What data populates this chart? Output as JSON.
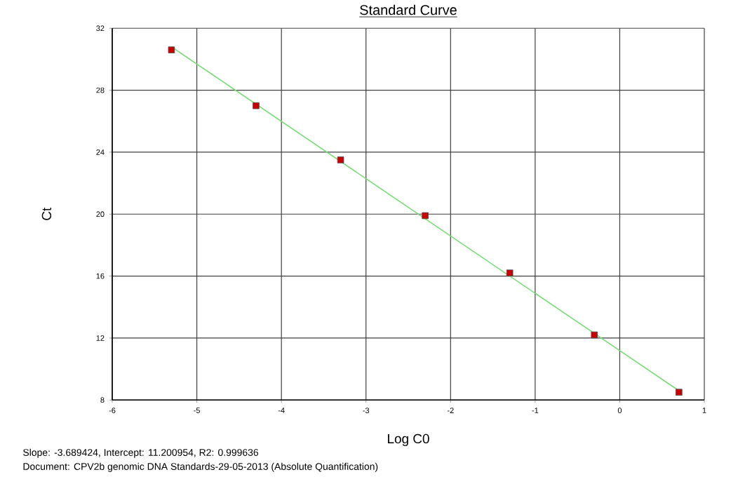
{
  "chart_data": {
    "type": "scatter",
    "title": "Standard Curve",
    "xlabel": "Log C0",
    "ylabel": "Ct",
    "xlim": [
      -6,
      1
    ],
    "xticks": [
      -6,
      -5,
      -4,
      -3,
      -2,
      -1,
      0,
      1
    ],
    "ylim": [
      8,
      32
    ],
    "yticks": [
      8,
      12,
      16,
      20,
      24,
      28,
      32
    ],
    "grid": true,
    "series": [
      {
        "type": "line",
        "color": "#77dd77",
        "marker": "none",
        "x": [
          -5.3,
          0.7
        ],
        "values": [
          30.8,
          8.6
        ]
      },
      {
        "color": "#cc0000",
        "marker": "square",
        "x": [
          -5.3,
          -4.3,
          -3.3,
          -2.3,
          -1.3,
          -0.3,
          0.7
        ],
        "values": [
          30.6,
          27.0,
          23.5,
          19.9,
          16.2,
          12.2,
          8.5
        ]
      }
    ],
    "annotations": [
      "Slope:  -3.689424, Intercept:  11.200954, R2:  0.999636",
      "Document: CPV2b genomic DNA Standards-29-05-2013 (Absolute Quantification)"
    ]
  }
}
